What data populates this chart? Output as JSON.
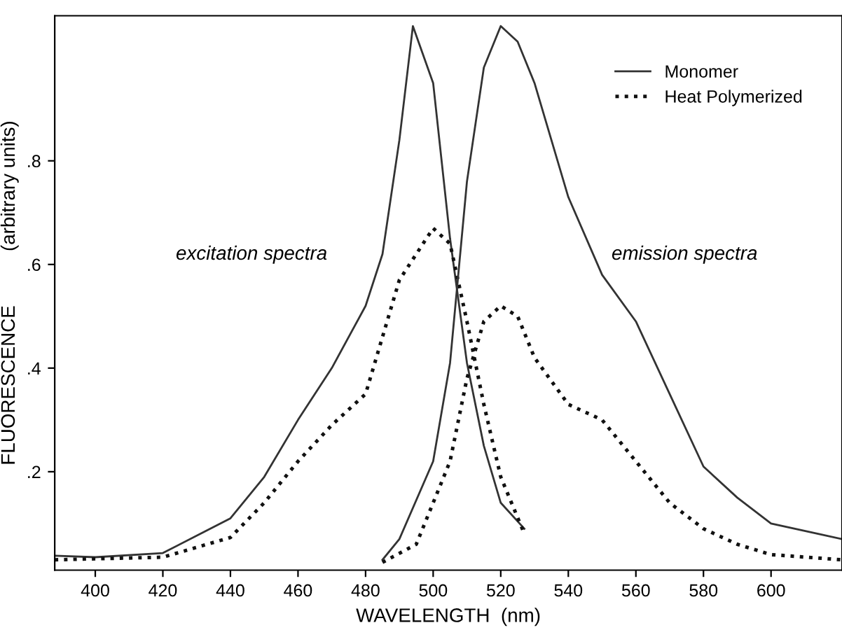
{
  "chart_data": {
    "type": "line",
    "xlabel": "WAVELENGTH  (nm)",
    "ylabel": "FLUORESCENCE          (arbitrary units)",
    "xlim": [
      388,
      621
    ],
    "ylim": [
      0.01,
      1.08
    ],
    "xticks": [
      400,
      420,
      440,
      460,
      480,
      500,
      520,
      540,
      560,
      580,
      600
    ],
    "yticks": [
      {
        "value": 0.2,
        "label": ".2"
      },
      {
        "value": 0.4,
        "label": ".4"
      },
      {
        "value": 0.6,
        "label": ".6"
      },
      {
        "value": 0.8,
        "label": ".8"
      }
    ],
    "grid": false,
    "legend": "top right",
    "marker": "none",
    "series": [
      {
        "name": "Monomer",
        "color": "#333333",
        "line_style": "solid",
        "x": [
          388,
          400,
          420,
          440,
          450,
          460,
          470,
          480,
          485,
          490,
          494,
          500,
          505,
          510,
          515,
          520,
          527
        ],
        "values": [
          0.038,
          0.035,
          0.043,
          0.11,
          0.19,
          0.3,
          0.4,
          0.52,
          0.62,
          0.84,
          1.06,
          0.95,
          0.65,
          0.41,
          0.25,
          0.14,
          0.09
        ]
      },
      {
        "name": "Heat Polymerized",
        "color": "#111111",
        "line_style": "dotted",
        "x": [
          388,
          420,
          440,
          450,
          460,
          470,
          480,
          490,
          500,
          505,
          510,
          515,
          520,
          527
        ],
        "values": [
          0.03,
          0.035,
          0.073,
          0.14,
          0.22,
          0.29,
          0.35,
          0.57,
          0.67,
          0.64,
          0.49,
          0.33,
          0.19,
          0.08
        ]
      },
      {
        "color": "#333333",
        "line_style": "solid",
        "x": [
          485,
          490,
          500,
          505,
          510,
          515,
          520,
          525,
          530,
          540,
          550,
          560,
          570,
          580,
          590,
          600,
          621
        ],
        "values": [
          0.03,
          0.07,
          0.22,
          0.41,
          0.76,
          0.98,
          1.06,
          1.03,
          0.95,
          0.73,
          0.58,
          0.49,
          0.35,
          0.21,
          0.15,
          0.1,
          0.07
        ]
      },
      {
        "color": "#111111",
        "line_style": "dotted",
        "x": [
          485,
          495,
          505,
          510,
          515,
          520,
          525,
          530,
          540,
          550,
          560,
          570,
          580,
          590,
          600,
          621
        ],
        "values": [
          0.025,
          0.06,
          0.22,
          0.38,
          0.49,
          0.52,
          0.5,
          0.42,
          0.33,
          0.3,
          0.22,
          0.14,
          0.09,
          0.06,
          0.04,
          0.03
        ]
      }
    ],
    "annotations": [
      "excitation spectra",
      "emission spectra"
    ]
  }
}
